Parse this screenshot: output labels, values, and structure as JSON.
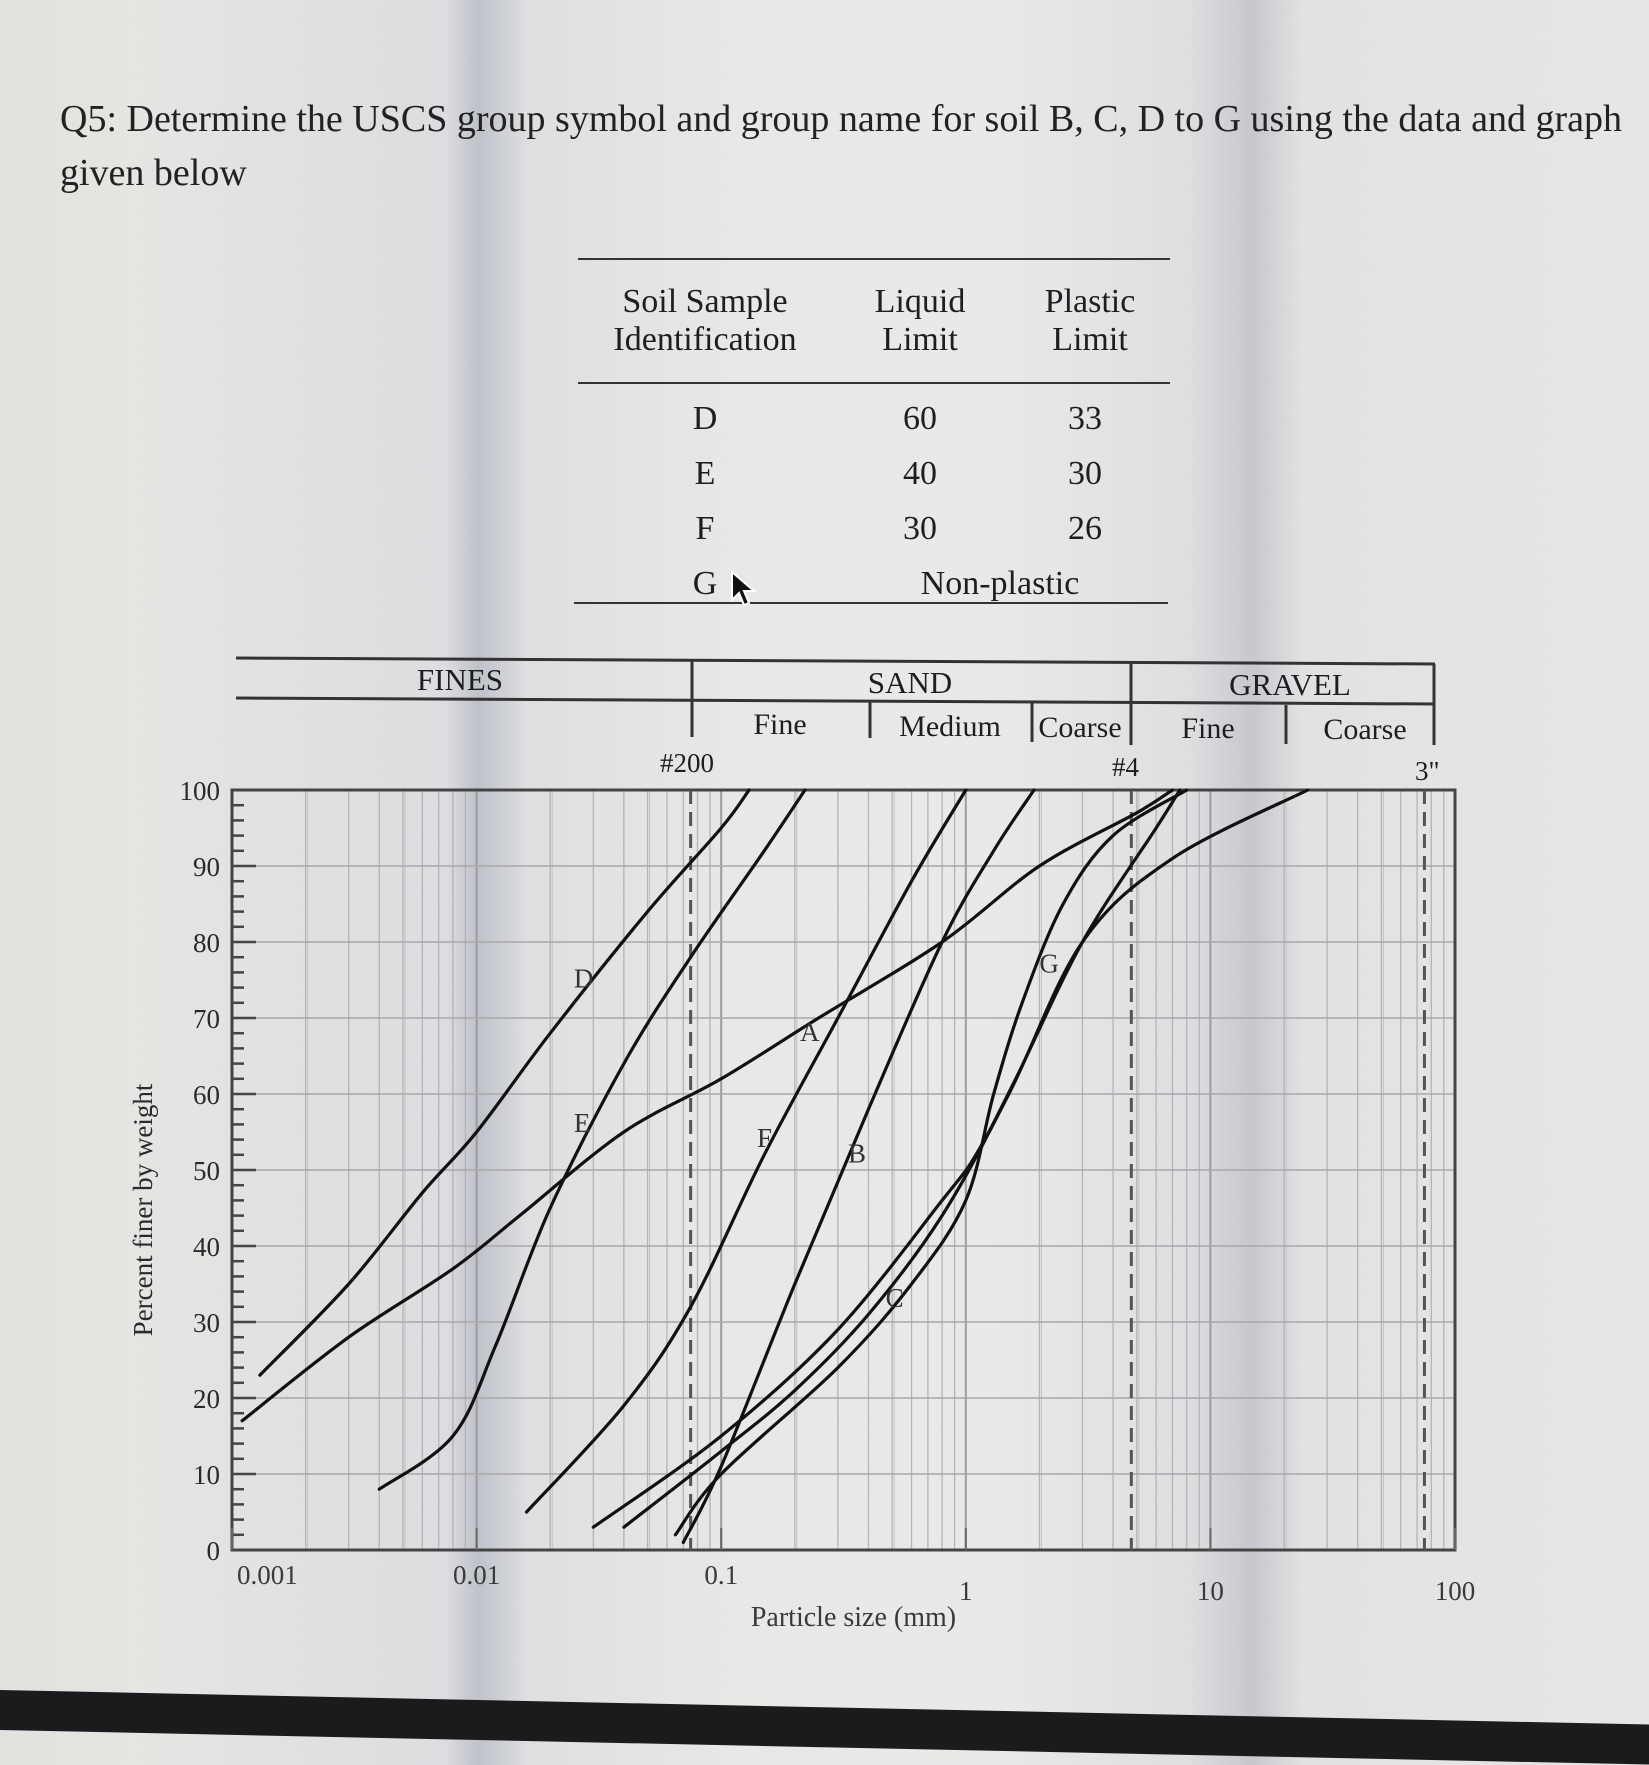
{
  "question": {
    "text": "Q5: Determine the USCS group symbol and group name for soil B, C, D to G using the data and graph given below"
  },
  "properties_table": {
    "headers": {
      "id": [
        "Soil Sample",
        "Identification"
      ],
      "ll": [
        "Liquid",
        "Limit"
      ],
      "pl": [
        "Plastic",
        "Limit"
      ]
    },
    "rows": [
      {
        "id": "D",
        "ll": "60",
        "pl": "33"
      },
      {
        "id": "E",
        "ll": "40",
        "pl": "30"
      },
      {
        "id": "F",
        "ll": "30",
        "pl": "26"
      },
      {
        "id": "G",
        "merged": "Non-plastic"
      }
    ]
  },
  "size_bands": {
    "fines": "FINES",
    "sand": "SAND",
    "gravel": "GRAVEL",
    "sand_fine": "Fine",
    "sand_medium": "Medium",
    "sand_coarse": "Coarse",
    "gravel_fine": "Fine",
    "gravel_coarse": "Coarse",
    "sieve_200": "#200",
    "sieve_4": "#4",
    "sieve_3in": "3\""
  },
  "chart_data": {
    "type": "line",
    "title": "",
    "xlabel": "Particle size (mm)",
    "ylabel": "Percent finer by weight",
    "xscale": "log",
    "xlim": [
      0.001,
      100
    ],
    "ylim": [
      0,
      100
    ],
    "x_ticks": [
      "0.001",
      "0.01",
      "0.1",
      "1",
      "10",
      "100"
    ],
    "y_ticks": [
      "0",
      "10",
      "20",
      "30",
      "40",
      "50",
      "60",
      "70",
      "80",
      "90",
      "100"
    ],
    "grid": true,
    "reference_lines": [
      {
        "label": "#200",
        "x": 0.075,
        "style": "dashed"
      },
      {
        "label": "#4",
        "x": 4.75,
        "style": "dashed"
      },
      {
        "label": "3\"",
        "x": 75,
        "style": "dashed"
      }
    ],
    "series": [
      {
        "name": "D",
        "points": [
          [
            0.0013,
            23
          ],
          [
            0.003,
            35
          ],
          [
            0.006,
            47
          ],
          [
            0.01,
            55
          ],
          [
            0.02,
            68
          ],
          [
            0.05,
            84
          ],
          [
            0.1,
            95
          ],
          [
            0.13,
            100
          ]
        ]
      },
      {
        "name": "E",
        "points": [
          [
            0.004,
            8
          ],
          [
            0.008,
            15
          ],
          [
            0.012,
            27
          ],
          [
            0.02,
            45
          ],
          [
            0.04,
            64
          ],
          [
            0.075,
            78
          ],
          [
            0.15,
            92
          ],
          [
            0.22,
            100
          ]
        ]
      },
      {
        "name": "A",
        "points": [
          [
            0.0011,
            17
          ],
          [
            0.003,
            28
          ],
          [
            0.008,
            37
          ],
          [
            0.015,
            44
          ],
          [
            0.04,
            55
          ],
          [
            0.1,
            62
          ],
          [
            0.25,
            70
          ],
          [
            0.8,
            80
          ],
          [
            2,
            90
          ],
          [
            5,
            97
          ],
          [
            7,
            100
          ]
        ]
      },
      {
        "name": "F",
        "points": [
          [
            0.016,
            5
          ],
          [
            0.04,
            19
          ],
          [
            0.075,
            32
          ],
          [
            0.15,
            52
          ],
          [
            0.3,
            70
          ],
          [
            0.6,
            88
          ],
          [
            1.0,
            100
          ]
        ]
      },
      {
        "name": "B",
        "points": [
          [
            0.07,
            1
          ],
          [
            0.1,
            11
          ],
          [
            0.2,
            35
          ],
          [
            0.4,
            58
          ],
          [
            0.8,
            80
          ],
          [
            1.3,
            92
          ],
          [
            1.9,
            100
          ]
        ]
      },
      {
        "name": "C",
        "points": [
          [
            0.04,
            3
          ],
          [
            0.1,
            13
          ],
          [
            0.2,
            21
          ],
          [
            0.4,
            31
          ],
          [
            0.8,
            44
          ],
          [
            1.5,
            60
          ],
          [
            3,
            80
          ],
          [
            7,
            91
          ],
          [
            25,
            100
          ]
        ]
      },
      {
        "name": "G",
        "points": [
          [
            0.065,
            2
          ],
          [
            0.1,
            10
          ],
          [
            0.3,
            24
          ],
          [
            0.6,
            35
          ],
          [
            1.0,
            46
          ],
          [
            1.3,
            60
          ],
          [
            1.7,
            72
          ],
          [
            2.5,
            85
          ],
          [
            4,
            94
          ],
          [
            8,
            100
          ]
        ]
      },
      {
        "name": "unlabeled-lower",
        "points": [
          [
            0.03,
            3
          ],
          [
            0.1,
            15
          ],
          [
            0.3,
            29
          ],
          [
            0.8,
            46
          ],
          [
            1.1,
            52
          ],
          [
            1.6,
            62
          ],
          [
            3,
            80
          ],
          [
            6,
            95
          ],
          [
            7.5,
            100
          ]
        ]
      }
    ],
    "curve_labels": [
      {
        "name": "D",
        "x": 0.025,
        "y": 74
      },
      {
        "name": "E",
        "x": 0.025,
        "y": 55
      },
      {
        "name": "A",
        "x": 0.21,
        "y": 67
      },
      {
        "name": "F",
        "x": 0.14,
        "y": 53
      },
      {
        "name": "B",
        "x": 0.33,
        "y": 51
      },
      {
        "name": "C",
        "x": 0.47,
        "y": 32
      },
      {
        "name": "G",
        "x": 2.0,
        "y": 76
      }
    ]
  }
}
